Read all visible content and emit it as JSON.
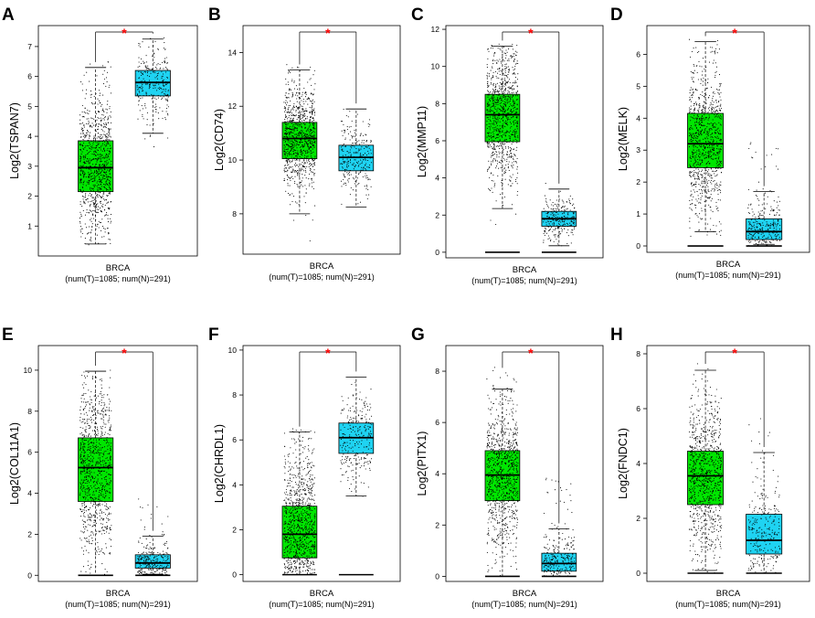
{
  "figure": {
    "background": "#ffffff"
  },
  "colors": {
    "tumor": "#00e600",
    "normal": "#1fd3f2",
    "sig": "#ff0000",
    "points": "#000000"
  },
  "chart_data": [
    {
      "id": "A",
      "type": "box",
      "title": "",
      "ylabel": "Log2(TSPAN7)",
      "xlabel": "BRCA",
      "xsub": "(num(T)=1085; num(N)=291)",
      "ylim": [
        0,
        7.7
      ],
      "yticks": [
        1,
        2,
        3,
        4,
        5,
        6,
        7
      ],
      "significance": "*",
      "groups": [
        {
          "name": "Tumor",
          "n": 1085,
          "min": 0.4,
          "q1": 2.15,
          "median": 2.95,
          "q3": 3.85,
          "max": 6.3,
          "point_range": [
            0.35,
            6.5
          ]
        },
        {
          "name": "Normal",
          "n": 291,
          "min": 4.1,
          "q1": 5.35,
          "median": 5.8,
          "q3": 6.2,
          "max": 7.25,
          "point_range": [
            3.4,
            7.3
          ]
        }
      ]
    },
    {
      "id": "B",
      "type": "box",
      "title": "",
      "ylabel": "Log2(CD74)",
      "xlabel": "BRCA",
      "xsub": "(num(T)=1085; num(N)=291)",
      "ylim": [
        6.5,
        15
      ],
      "yticks": [
        8,
        10,
        12,
        14
      ],
      "significance": "*",
      "groups": [
        {
          "name": "Tumor",
          "n": 1085,
          "min": 8.0,
          "q1": 10.05,
          "median": 10.8,
          "q3": 11.4,
          "max": 13.35,
          "point_range": [
            6.7,
            13.6
          ]
        },
        {
          "name": "Normal",
          "n": 291,
          "min": 8.25,
          "q1": 9.6,
          "median": 10.1,
          "q3": 10.55,
          "max": 11.9,
          "point_range": [
            7.2,
            12.0
          ]
        }
      ]
    },
    {
      "id": "C",
      "type": "box",
      "title": "",
      "ylabel": "Log2(MMP11)",
      "xlabel": "BRCA",
      "xsub": "(num(T)=1085; num(N)=291)",
      "ylim": [
        -0.3,
        12.2
      ],
      "yticks": [
        0,
        2,
        4,
        6,
        8,
        10,
        12
      ],
      "significance": "*",
      "groups": [
        {
          "name": "Tumor",
          "n": 1085,
          "min": 2.35,
          "q1": 5.95,
          "median": 7.4,
          "q3": 8.5,
          "max": 11.1,
          "point_range": [
            1.4,
            11.2
          ],
          "zeros": true
        },
        {
          "name": "Normal",
          "n": 291,
          "min": 0.35,
          "q1": 1.4,
          "median": 1.8,
          "q3": 2.2,
          "max": 3.4,
          "point_range": [
            0.2,
            5.5
          ],
          "zeros": true
        }
      ]
    },
    {
      "id": "D",
      "type": "box",
      "title": "",
      "ylabel": "Log2(MELK)",
      "xlabel": "BRCA",
      "xsub": "(num(T)=1085; num(N)=291)",
      "ylim": [
        -0.2,
        6.9
      ],
      "yticks": [
        0,
        1,
        2,
        3,
        4,
        5,
        6
      ],
      "significance": "*",
      "groups": [
        {
          "name": "Tumor",
          "n": 1085,
          "min": 0.45,
          "q1": 2.45,
          "median": 3.2,
          "q3": 4.15,
          "max": 6.4,
          "point_range": [
            0.3,
            6.5
          ],
          "zeros": true
        },
        {
          "name": "Normal",
          "n": 291,
          "min": 0.05,
          "q1": 0.2,
          "median": 0.45,
          "q3": 0.85,
          "max": 1.7,
          "point_range": [
            0.0,
            3.3
          ],
          "zeros": true
        }
      ]
    },
    {
      "id": "E",
      "type": "box",
      "title": "",
      "ylabel": "Log2(COL11A1)",
      "xlabel": "BRCA",
      "xsub": "(num(T)=1085; num(N)=291)",
      "ylim": [
        -0.3,
        11.2
      ],
      "yticks": [
        0,
        2,
        4,
        6,
        8,
        10
      ],
      "significance": "*",
      "groups": [
        {
          "name": "Tumor",
          "n": 1085,
          "min": 0.0,
          "q1": 3.6,
          "median": 5.25,
          "q3": 6.7,
          "max": 9.95,
          "point_range": [
            0.0,
            10.0
          ],
          "zeros": true
        },
        {
          "name": "Normal",
          "n": 291,
          "min": 0.05,
          "q1": 0.35,
          "median": 0.6,
          "q3": 1.0,
          "max": 1.9,
          "point_range": [
            0.0,
            3.8
          ],
          "zeros": true
        }
      ]
    },
    {
      "id": "F",
      "type": "box",
      "title": "",
      "ylabel": "Log2(CHRDL1)",
      "xlabel": "BRCA",
      "xsub": "(num(T)=1085; num(N)=291)",
      "ylim": [
        -0.3,
        10.2
      ],
      "yticks": [
        0,
        2,
        4,
        6,
        8,
        10
      ],
      "significance": "*",
      "groups": [
        {
          "name": "Tumor",
          "n": 1085,
          "min": 0.0,
          "q1": 0.75,
          "median": 1.8,
          "q3": 3.05,
          "max": 6.35,
          "point_range": [
            0.0,
            6.5
          ],
          "zeros": true
        },
        {
          "name": "Normal",
          "n": 291,
          "min": 3.5,
          "q1": 5.4,
          "median": 6.1,
          "q3": 6.75,
          "max": 8.8,
          "point_range": [
            2.4,
            9.3
          ],
          "zeros": true
        }
      ]
    },
    {
      "id": "G",
      "type": "box",
      "title": "",
      "ylabel": "Log2(PITX1)",
      "xlabel": "BRCA",
      "xsub": "(num(T)=1085; num(N)=291)",
      "ylim": [
        -0.2,
        9.0
      ],
      "yticks": [
        0,
        2,
        4,
        6,
        8
      ],
      "significance": "*",
      "groups": [
        {
          "name": "Tumor",
          "n": 1085,
          "min": 0.0,
          "q1": 2.95,
          "median": 3.95,
          "q3": 4.9,
          "max": 7.3,
          "point_range": [
            0.0,
            8.2
          ],
          "zeros": true
        },
        {
          "name": "Normal",
          "n": 291,
          "min": 0.0,
          "q1": 0.2,
          "median": 0.5,
          "q3": 0.9,
          "max": 1.85,
          "point_range": [
            0.0,
            3.9
          ],
          "zeros": true
        }
      ]
    },
    {
      "id": "H",
      "type": "box",
      "title": "",
      "ylabel": "Log2(FNDC1)",
      "xlabel": "BRCA",
      "xsub": "(num(T)=1085; num(N)=291)",
      "ylim": [
        -0.3,
        8.3
      ],
      "yticks": [
        0,
        2,
        4,
        6,
        8
      ],
      "significance": "*",
      "groups": [
        {
          "name": "Tumor",
          "n": 1085,
          "min": 0.1,
          "q1": 2.5,
          "median": 3.55,
          "q3": 4.45,
          "max": 7.4,
          "point_range": [
            0.0,
            7.7
          ],
          "zeros": true
        },
        {
          "name": "Normal",
          "n": 291,
          "min": 0.0,
          "q1": 0.7,
          "median": 1.2,
          "q3": 2.15,
          "max": 4.4,
          "point_range": [
            0.0,
            5.7
          ],
          "zeros": true
        }
      ]
    }
  ]
}
